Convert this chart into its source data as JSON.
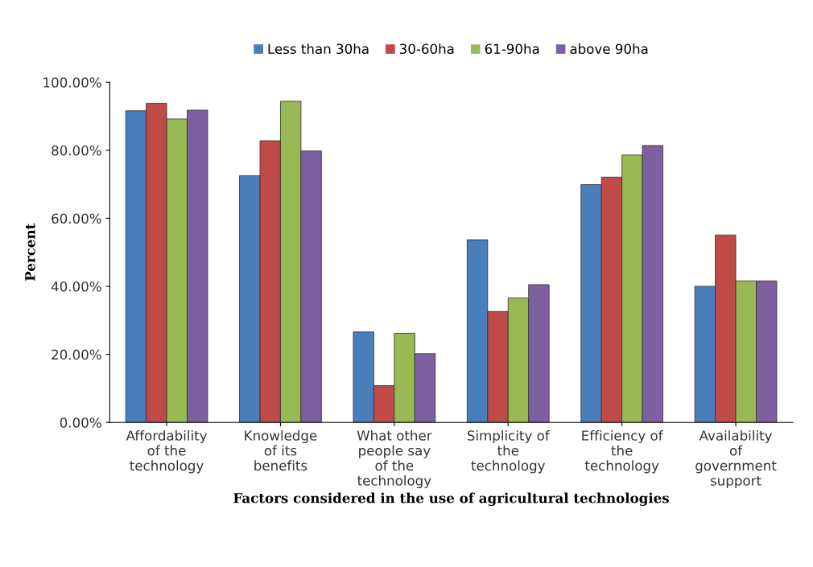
{
  "chart_data": {
    "type": "bar",
    "xlabel": "Factors considered in the use of agricultural technologies",
    "ylabel": "Percent",
    "categories": [
      "Affordability\nof the\ntechnology",
      "Knowledge\nof its\nbenefits",
      "What other\npeople say\nof the\ntechnology",
      "Simplicity of\nthe\ntechnology",
      "Efficiency of\nthe\ntechnology",
      "Availability\nof\ngovernment\nsupport"
    ],
    "series": [
      {
        "name": "Less than 30ha",
        "color": "#4a7ebb",
        "values": [
          91.6,
          72.5,
          26.6,
          53.7,
          69.9,
          40.0
        ]
      },
      {
        "name": "30-60ha",
        "color": "#be4b48",
        "values": [
          93.8,
          82.8,
          10.8,
          32.6,
          72.1,
          55.1
        ]
      },
      {
        "name": "61-90ha",
        "color": "#98b954",
        "values": [
          89.2,
          94.4,
          26.2,
          36.6,
          78.6,
          41.6
        ]
      },
      {
        "name": "above 90ha",
        "color": "#7d60a0",
        "values": [
          91.8,
          79.8,
          20.2,
          40.5,
          81.4,
          41.6
        ]
      }
    ],
    "ylim": [
      0,
      100
    ],
    "yticks": [
      {
        "value": 0,
        "label": "0.00%"
      },
      {
        "value": 20,
        "label": "20.00%"
      },
      {
        "value": 40,
        "label": "40.00%"
      },
      {
        "value": 60,
        "label": "60.00%"
      },
      {
        "value": 80,
        "label": "80.00%"
      },
      {
        "value": 100,
        "label": "100.00%"
      }
    ],
    "grid": false,
    "legend": "top"
  }
}
